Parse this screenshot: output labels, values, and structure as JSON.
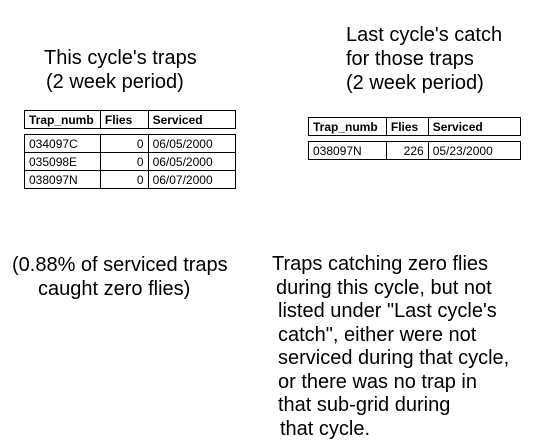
{
  "left_title": {
    "line1": "This cycle's traps",
    "line2": "(2 week period)"
  },
  "right_title": {
    "line1": "Last cycle's catch",
    "line2": "for those traps",
    "line3": "(2 week period)"
  },
  "this_cycle_table": {
    "columns": [
      "Trap_numb",
      "Flies",
      "Serviced"
    ],
    "rows": [
      [
        "034097C",
        "0",
        "06/05/2000"
      ],
      [
        "035098E",
        "0",
        "06/05/2000"
      ],
      [
        "038097N",
        "0",
        "06/07/2000"
      ]
    ]
  },
  "last_cycle_table": {
    "columns": [
      "Trap_numb",
      "Flies",
      "Serviced"
    ],
    "rows": [
      [
        "038097N",
        "226",
        "05/23/2000"
      ]
    ]
  },
  "left_note": {
    "line1": "(0.88% of serviced traps",
    "line2": "caught zero flies)"
  },
  "right_note": {
    "line1": "Traps catching zero flies",
    "line2": "during this cycle, but not",
    "line3": "listed under \"Last cycle's",
    "line4": "catch\", either were not",
    "line5": "serviced during that cycle,",
    "line6": "or there was no trap in",
    "line7": "that sub-grid during",
    "line8": "that cycle."
  }
}
